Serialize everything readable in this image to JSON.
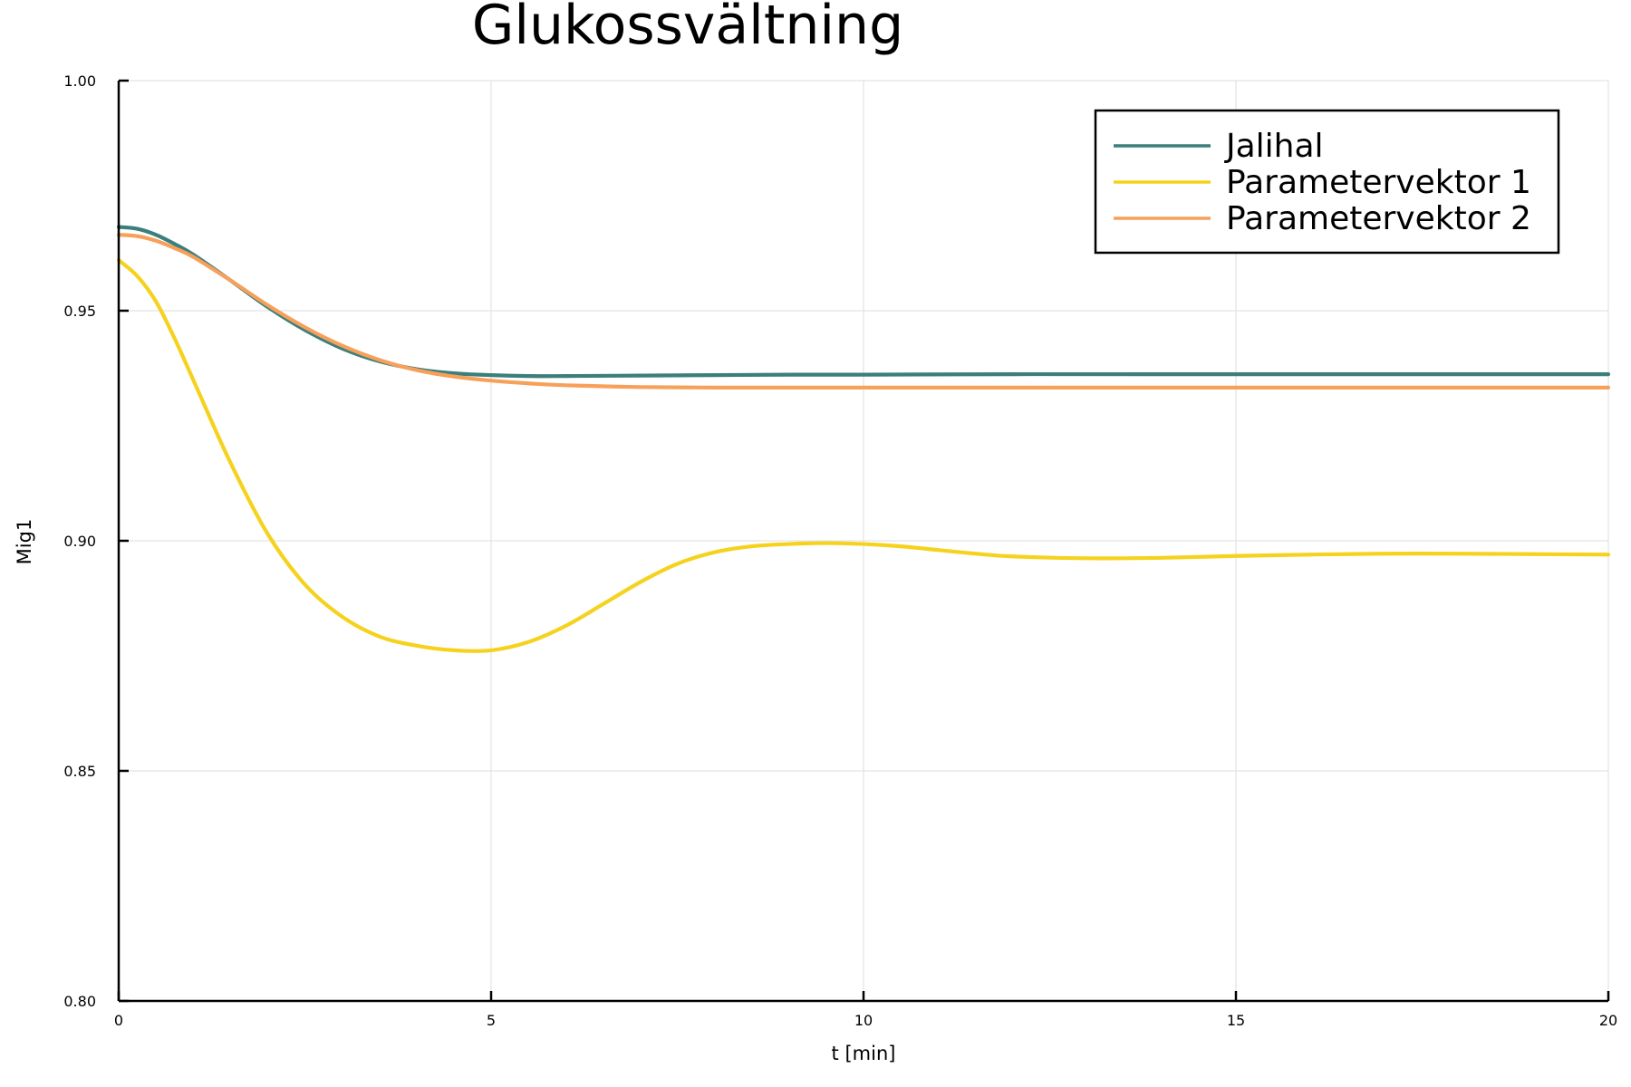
{
  "chart_data": {
    "type": "line",
    "title": "Glukossvältning",
    "xlabel": "t [min]",
    "ylabel": "Mig1",
    "xlim": [
      0,
      20
    ],
    "ylim": [
      0.8,
      1.0
    ],
    "xticks": [
      0,
      5,
      10,
      15,
      20
    ],
    "xtick_labels": [
      "0",
      "5",
      "10",
      "15",
      "20"
    ],
    "yticks": [
      0.8,
      0.85,
      0.9,
      0.95,
      1.0
    ],
    "ytick_labels": [
      "0.80",
      "0.85",
      "0.90",
      "0.95",
      "1.00"
    ],
    "grid": true,
    "legend_position": "top-right",
    "series": [
      {
        "name": "Jalihal",
        "color": "#3b7f7c",
        "x": [
          0,
          0.25,
          0.5,
          0.75,
          1,
          1.5,
          2,
          2.5,
          3,
          3.5,
          4,
          4.5,
          5,
          5.5,
          6,
          7,
          8,
          9,
          10,
          12,
          14,
          16,
          18,
          20
        ],
        "y": [
          0.9682,
          0.9678,
          0.9665,
          0.9645,
          0.9622,
          0.9566,
          0.9508,
          0.9458,
          0.9418,
          0.939,
          0.9373,
          0.9364,
          0.936,
          0.9358,
          0.9358,
          0.9359,
          0.936,
          0.9361,
          0.9361,
          0.9362,
          0.9362,
          0.9362,
          0.9362,
          0.9362
        ]
      },
      {
        "name": "Parameterv​ektor 1",
        "color": "#f5d21e",
        "x": [
          0,
          0.25,
          0.5,
          0.75,
          1,
          1.5,
          2,
          2.5,
          3,
          3.5,
          4,
          4.5,
          5,
          5.5,
          6,
          6.5,
          7,
          7.5,
          8,
          8.5,
          9,
          9.5,
          10,
          10.5,
          11,
          11.5,
          12,
          13,
          14,
          15,
          16,
          17,
          18,
          19,
          20
        ],
        "y": [
          0.961,
          0.9575,
          0.952,
          0.944,
          0.935,
          0.917,
          0.9015,
          0.8905,
          0.8835,
          0.8792,
          0.8772,
          0.8762,
          0.8762,
          0.878,
          0.8815,
          0.8862,
          0.891,
          0.895,
          0.8975,
          0.8988,
          0.8993,
          0.8995,
          0.8993,
          0.8988,
          0.898,
          0.8972,
          0.8966,
          0.8962,
          0.8963,
          0.8967,
          0.897,
          0.8972,
          0.8972,
          0.8971,
          0.897
        ]
      },
      {
        "name": "Parameterv​ektor 2",
        "color": "#f7a05a",
        "x": [
          0,
          0.25,
          0.5,
          0.75,
          1,
          1.5,
          2,
          2.5,
          3,
          3.5,
          4,
          4.5,
          5,
          5.5,
          6,
          7,
          8,
          9,
          10,
          12,
          14,
          16,
          18,
          20
        ],
        "y": [
          0.9665,
          0.9662,
          0.9652,
          0.9636,
          0.9617,
          0.9566,
          0.9512,
          0.9464,
          0.9424,
          0.9393,
          0.9371,
          0.9357,
          0.9348,
          0.9342,
          0.9338,
          0.9334,
          0.9333,
          0.9333,
          0.9333,
          0.9333,
          0.9333,
          0.9333,
          0.9333,
          0.9333
        ]
      }
    ]
  }
}
